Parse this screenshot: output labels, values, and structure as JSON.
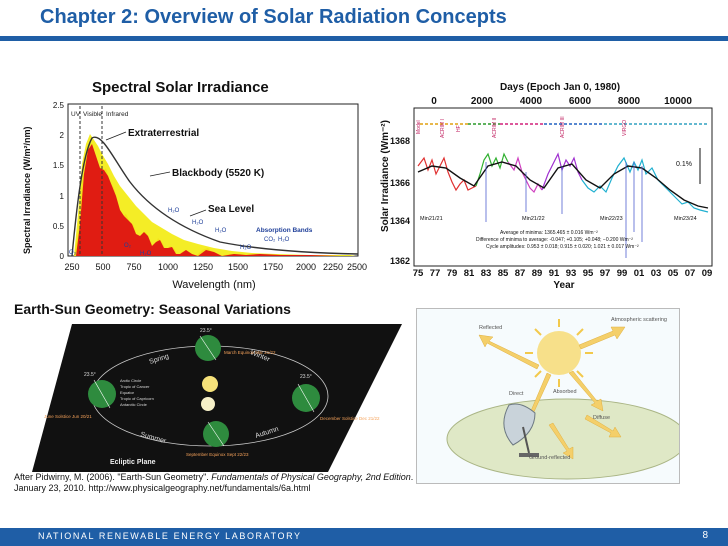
{
  "slide": {
    "title": "Chapter 2: Overview of Solar Radiation Concepts",
    "footer_org": "NATIONAL RENEWABLE ENERGY LABORATORY",
    "page_number": "8",
    "colors": {
      "brand_blue": "#1f5ea6",
      "footer_bg": "#1f5ea6"
    }
  },
  "spectral": {
    "title": "Spectral Solar Irradiance",
    "ylabel": "Spectral Irradiance (W/m²/nm)",
    "xlabel": "Wavelength (nm)",
    "band_uv": "UV",
    "band_visible": "Visible",
    "band_infrared": "Infrared",
    "label_extraterrestrial": "Extraterrestrial",
    "label_blackbody": "Blackbody (5520 K)",
    "label_sealevel": "Sea Level",
    "label_absorption": "Absorption Bands",
    "mol_h2o": "H₂O",
    "mol_o2": "O₂",
    "mol_o3": "O₃",
    "mol_co2": "CO₂",
    "y_ticks": [
      "2.5",
      "2",
      "1.5",
      "1",
      "0.5",
      "0"
    ],
    "x_ticks": [
      "250",
      "500",
      "750",
      "1000",
      "1250",
      "1500",
      "1750",
      "2000",
      "2250",
      "2500"
    ]
  },
  "tsi": {
    "top_axis_title": "Days (Epoch Jan 0, 1980)",
    "top_ticks": [
      "0",
      "2000",
      "4000",
      "6000",
      "8000",
      "10000"
    ],
    "ylabel": "Solar Irradiance (Wm⁻²)",
    "y_ticks": [
      "1368",
      "1366",
      "1364",
      "1362"
    ],
    "x_ticks": [
      "75",
      "77",
      "79",
      "81",
      "83",
      "85",
      "87",
      "89",
      "91",
      "93",
      "95",
      "97",
      "99",
      "01",
      "03",
      "05",
      "07",
      "09"
    ],
    "xlabel": "Year",
    "minima": [
      "Min21/21",
      "Min21/22",
      "Min22/23",
      "Min23/24"
    ],
    "instruments": [
      "Model",
      "ACRIM I",
      "HF",
      "ACRIM II",
      "ACRIM III",
      "VIRGO"
    ],
    "pct_label": "0.1%",
    "note_line1": "Average of minima: 1365.465 ± 0.016 Wm⁻²",
    "note_line2": "Difference of minima to average: -0.047; +0.105; +0.048; −0.200 Wm⁻²",
    "note_line3": "Cycle amplitudes: 0.953 ± 0.018; 0.915 ± 0.020; 1.021 ± 0.017 Wm⁻²"
  },
  "geometry": {
    "header": "Earth-Sun Geometry:  Seasonal Variations",
    "angle_label": "23.5°",
    "season_spring": "Spring",
    "season_winter": "Winter",
    "season_summer": "Summer",
    "season_autumn": "Autumn",
    "march": "March Equinox Mar 21/22",
    "june": "June Solstice Jun 20/21",
    "september": "September Equinox Sept 22/23",
    "december": "December Solstice Dec 21/22",
    "plane_label": "Ecliptic Plane",
    "circles": [
      "Arctic Circle",
      "Tropic of Cancer",
      "Equator",
      "Tropic of Capricorn",
      "Antarctic Circle"
    ]
  },
  "radiation": {
    "reflected": "Reflected",
    "atmospheric": "Atmospheric scattering",
    "direct": "Direct",
    "absorbed": "Absorbed",
    "diffuse": "Diffuse",
    "ground": "Ground-reflected"
  },
  "citation": {
    "prefix": "After Pidwirny, M. (2006). \"Earth-Sun Geometry\". ",
    "book": "Fundamentals of Physical Geography, 2nd Edition",
    "suffix": ". January 23, 2010. http://www.physicalgeography.net/fundamentals/6a.html"
  }
}
